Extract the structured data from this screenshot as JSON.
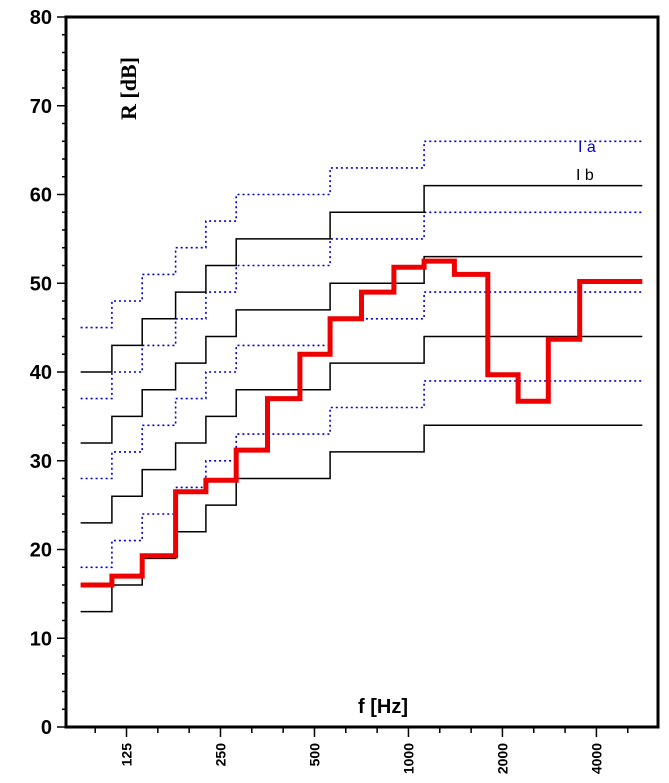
{
  "chart_data": {
    "type": "line",
    "title": "",
    "xlabel": "f [Hz]",
    "ylabel": "R  [dB]",
    "ylim": [
      0,
      80
    ],
    "y_ticks": [
      "0",
      "10",
      "20",
      "30",
      "40",
      "50",
      "60",
      "70",
      "80"
    ],
    "x_tick_labels": [
      "125",
      "250",
      "500",
      "1000",
      "2000",
      "4000"
    ],
    "x_tick_positions": [
      125,
      250,
      500,
      1000,
      2000,
      4000
    ],
    "x_scale": "log (1/3-octave bands)",
    "x_range_hz": [
      80,
      6300
    ],
    "band_centers_hz": [
      100,
      125,
      160,
      200,
      250,
      315,
      400,
      500,
      630,
      800,
      1000,
      1250,
      1600,
      2000,
      2500,
      3150,
      4000,
      5000
    ],
    "legend": [
      {
        "label": "I a",
        "color": "#0000cc",
        "style": "dotted"
      },
      {
        "label": "I b",
        "color": "#000000",
        "style": "solid"
      }
    ],
    "series": [
      {
        "name": "I a",
        "style": "dotted",
        "color": "#0000cc",
        "values": [
          45,
          48,
          51,
          54,
          57,
          60,
          60,
          60,
          63,
          63,
          63,
          66,
          66,
          66,
          66,
          66,
          66,
          66
        ]
      },
      {
        "style": "dotted",
        "color": "#0000cc",
        "values": [
          37,
          40,
          43,
          46,
          49,
          52,
          52,
          52,
          55,
          55,
          55,
          58,
          58,
          58,
          58,
          58,
          58,
          58
        ]
      },
      {
        "style": "dotted",
        "color": "#0000cc",
        "values": [
          28,
          31,
          34,
          37,
          40,
          43,
          43,
          43,
          46,
          46,
          46,
          49,
          49,
          49,
          49,
          49,
          49,
          49
        ]
      },
      {
        "style": "dotted",
        "color": "#0000cc",
        "values": [
          18,
          21,
          24,
          27,
          30,
          33,
          33,
          33,
          36,
          36,
          36,
          39,
          39,
          39,
          39,
          39,
          39,
          39
        ]
      },
      {
        "name": "I b",
        "style": "solid",
        "color": "#000000",
        "values": [
          40,
          43,
          46,
          49,
          52,
          55,
          55,
          55,
          58,
          58,
          58,
          61,
          61,
          61,
          61,
          61,
          61,
          61
        ]
      },
      {
        "style": "solid",
        "color": "#000000",
        "values": [
          32,
          35,
          38,
          41,
          44,
          47,
          47,
          47,
          50,
          50,
          50,
          53,
          53,
          53,
          53,
          53,
          53,
          53
        ]
      },
      {
        "style": "solid",
        "color": "#000000",
        "values": [
          23,
          26,
          29,
          32,
          35,
          38,
          38,
          38,
          41,
          41,
          41,
          44,
          44,
          44,
          44,
          44,
          44,
          44
        ]
      },
      {
        "style": "solid",
        "color": "#000000",
        "values": [
          13,
          16,
          19,
          22,
          25,
          28,
          28,
          28,
          31,
          31,
          31,
          34,
          34,
          34,
          34,
          34,
          34,
          34
        ]
      },
      {
        "style": "bold",
        "color": "#ee0000",
        "values": [
          16,
          17,
          19.3,
          26.5,
          27.8,
          31.2,
          37,
          42,
          46,
          49,
          51.8,
          52.5,
          51,
          39.7,
          36.7,
          43.7,
          50.2,
          50.2
        ]
      }
    ]
  }
}
